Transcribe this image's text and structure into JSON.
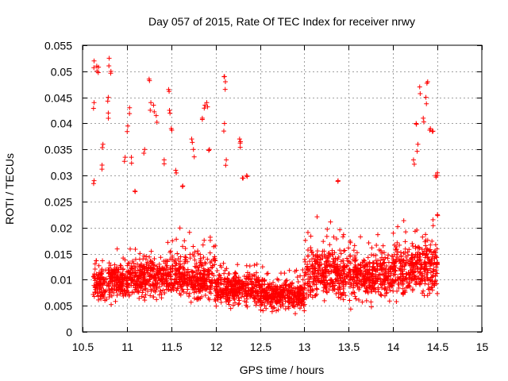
{
  "chart_data": {
    "type": "scatter",
    "title": "Day 057 of 2015, Rate Of TEC Index for receiver nrwy",
    "xlabel": "GPS time / hours",
    "ylabel": "ROTI / TECUs",
    "xlim": [
      10.5,
      15
    ],
    "ylim": [
      0,
      0.055
    ],
    "x_ticks": [
      10.5,
      11,
      11.5,
      12,
      12.5,
      13,
      13.5,
      14,
      14.5,
      15
    ],
    "x_tick_labels": [
      "10.5",
      "11",
      "11.5",
      "12",
      "12.5",
      "13",
      "13.5",
      "14",
      "14.5",
      "15"
    ],
    "y_ticks": [
      0,
      0.005,
      0.01,
      0.015,
      0.02,
      0.025,
      0.03,
      0.035,
      0.04,
      0.045,
      0.05,
      0.055
    ],
    "y_tick_labels": [
      "0",
      "0.005",
      "0.01",
      "0.015",
      "0.02",
      "0.025",
      "0.03",
      "0.035",
      "0.04",
      "0.045",
      "0.05",
      "0.055"
    ],
    "grid": true,
    "marker": "+",
    "color": "#ff0000",
    "series": [
      {
        "name": "ROTI",
        "data_x_range": [
          10.62,
          14.5
        ],
        "bands": [
          {
            "x0": 10.62,
            "x1": 11.0,
            "y_lo": 0.005,
            "y_hi": 0.018
          },
          {
            "x0": 11.0,
            "x1": 11.5,
            "y_lo": 0.005,
            "y_hi": 0.02
          },
          {
            "x0": 11.5,
            "x1": 12.0,
            "y_lo": 0.004,
            "y_hi": 0.022
          },
          {
            "x0": 12.0,
            "x1": 12.5,
            "y_lo": 0.004,
            "y_hi": 0.016
          },
          {
            "x0": 12.5,
            "x1": 13.0,
            "y_lo": 0.003,
            "y_hi": 0.014
          },
          {
            "x0": 13.0,
            "x1": 13.5,
            "y_lo": 0.004,
            "y_hi": 0.024
          },
          {
            "x0": 13.5,
            "x1": 14.0,
            "y_lo": 0.004,
            "y_hi": 0.022
          },
          {
            "x0": 14.0,
            "x1": 14.5,
            "y_lo": 0.005,
            "y_hi": 0.025
          }
        ],
        "high_points": [
          [
            10.63,
            0.052
          ],
          [
            10.66,
            0.051
          ],
          [
            10.68,
            0.0508
          ],
          [
            10.8,
            0.0525
          ],
          [
            10.82,
            0.05
          ],
          [
            10.79,
            0.045
          ],
          [
            10.79,
            0.042
          ],
          [
            10.63,
            0.044
          ],
          [
            10.63,
            0.029
          ],
          [
            10.73,
            0.036
          ],
          [
            10.72,
            0.032
          ],
          [
            10.98,
            0.0335
          ],
          [
            11.01,
            0.0395
          ],
          [
            11.03,
            0.043
          ],
          [
            11.05,
            0.0335
          ],
          [
            11.09,
            0.027
          ],
          [
            11.2,
            0.035
          ],
          [
            11.25,
            0.0485
          ],
          [
            11.27,
            0.044
          ],
          [
            11.3,
            0.0435
          ],
          [
            11.33,
            0.0415
          ],
          [
            11.42,
            0.033
          ],
          [
            11.47,
            0.0465
          ],
          [
            11.48,
            0.0425
          ],
          [
            11.5,
            0.039
          ],
          [
            11.55,
            0.031
          ],
          [
            11.63,
            0.028
          ],
          [
            11.73,
            0.037
          ],
          [
            11.75,
            0.035
          ],
          [
            11.85,
            0.041
          ],
          [
            11.88,
            0.0435
          ],
          [
            11.9,
            0.044
          ],
          [
            11.93,
            0.035
          ],
          [
            12.1,
            0.049
          ],
          [
            12.11,
            0.048
          ],
          [
            12.1,
            0.04
          ],
          [
            12.12,
            0.033
          ],
          [
            12.27,
            0.037
          ],
          [
            12.28,
            0.0365
          ],
          [
            12.31,
            0.0295
          ],
          [
            12.35,
            0.03
          ],
          [
            13.38,
            0.029
          ],
          [
            14.23,
            0.033
          ],
          [
            14.3,
            0.047
          ],
          [
            14.37,
            0.045
          ],
          [
            14.39,
            0.048
          ],
          [
            14.34,
            0.041
          ],
          [
            14.42,
            0.039
          ],
          [
            14.45,
            0.0385
          ],
          [
            14.48,
            0.03
          ],
          [
            14.5,
            0.0305
          ],
          [
            14.26,
            0.04
          ],
          [
            14.28,
            0.036
          ],
          [
            14.45,
            0.0215
          ],
          [
            14.5,
            0.0225
          ]
        ]
      }
    ]
  }
}
